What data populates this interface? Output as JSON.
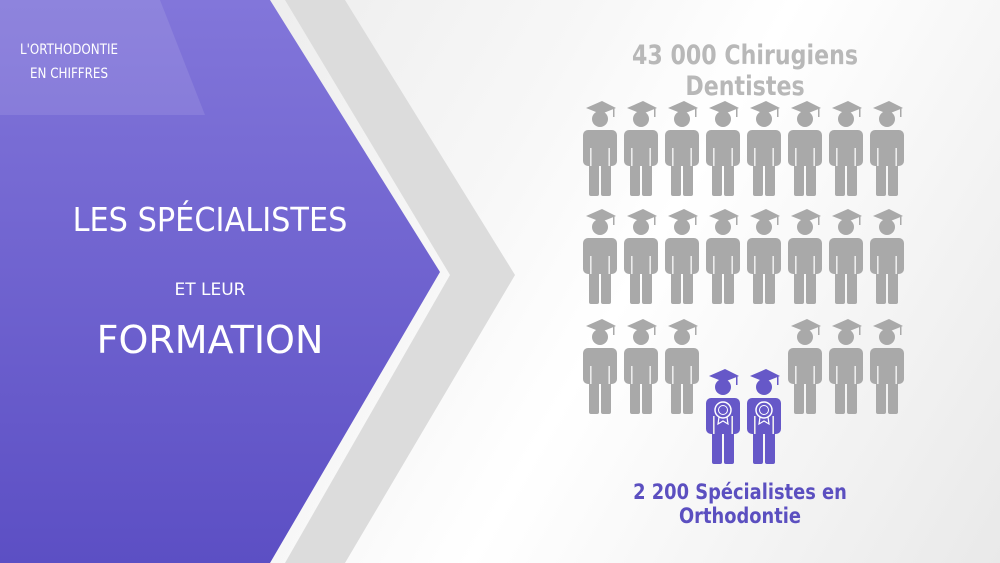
{
  "corner_label": {
    "line1": "L'ORTHODONTIE",
    "line2": "EN CHIFFRES"
  },
  "title": {
    "line1": "LES SPÉCIALISTES",
    "line2": "ET LEUR",
    "line3": "FORMATION"
  },
  "dentists_label": "43 000 Chirugiens Dentistes",
  "specialists_label": "2 200 Spécialistes en Orthodontie",
  "icons": {
    "figure": "graduate-person-icon",
    "specialist": "graduate-person-with-rosette-icon"
  },
  "colors": {
    "accent": "#6658c8",
    "figure_gray": "#a9a9a9",
    "text_gray": "#b8b8b8",
    "specialist_text": "#5b4fc0"
  }
}
